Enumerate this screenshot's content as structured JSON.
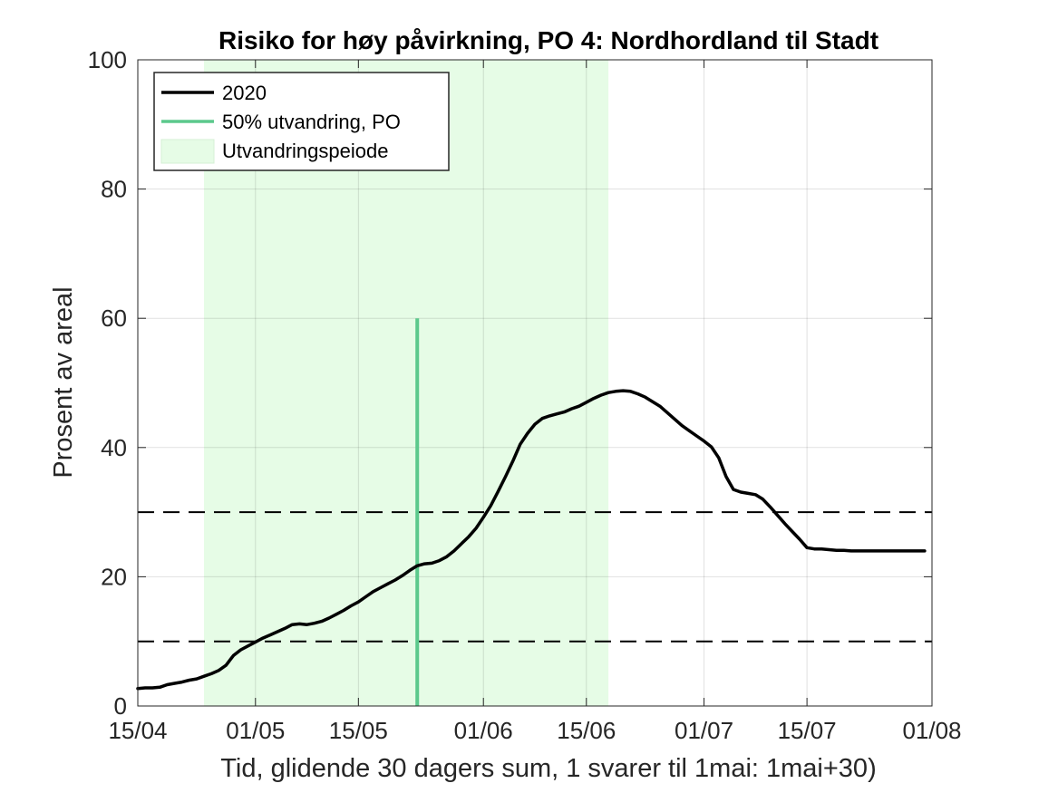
{
  "chart_data": {
    "type": "line",
    "title": "Risiko for høy påvirkning, PO 4: Nordhordland til Stadt",
    "xlabel": "Tid, glidende 30 dagers sum, 1 svarer til 1mai: 1mai+30)",
    "ylabel": "Prosent av areal",
    "x_ticks": [
      "15/04",
      "01/05",
      "15/05",
      "01/06",
      "15/06",
      "01/07",
      "15/07",
      "01/08"
    ],
    "x_tick_days": [
      0,
      16,
      30,
      47,
      61,
      77,
      91,
      108
    ],
    "xlim_days": [
      0,
      108
    ],
    "y_ticks": [
      "0",
      "20",
      "40",
      "60",
      "80",
      "100"
    ],
    "ylim": [
      0,
      100
    ],
    "grid": true,
    "legend_position": "top-left",
    "legend": [
      "2020",
      "50% utvandring, PO",
      "Utvandringspeiode"
    ],
    "series": [
      {
        "name": "2020",
        "color": "#000000",
        "x_days": [
          0,
          1,
          2,
          3,
          4,
          5,
          6,
          7,
          8,
          9,
          10,
          11,
          12,
          13,
          14,
          15,
          16,
          17,
          18,
          19,
          20,
          21,
          22,
          23,
          24,
          25,
          26,
          27,
          28,
          29,
          30,
          31,
          32,
          33,
          34,
          35,
          36,
          37,
          38,
          39,
          40,
          41,
          42,
          43,
          44,
          45,
          46,
          47,
          48,
          49,
          50,
          51,
          52,
          53,
          54,
          55,
          56,
          57,
          58,
          59,
          60,
          61,
          62,
          63,
          64,
          65,
          66,
          67,
          68,
          69,
          70,
          71,
          72,
          73,
          74,
          75,
          76,
          77,
          78,
          79,
          80,
          81,
          82,
          83,
          84,
          85,
          86,
          87,
          88,
          89,
          90,
          91,
          92,
          93,
          94,
          95,
          96,
          97,
          98,
          99,
          100,
          101,
          102,
          103,
          104,
          105,
          106,
          107
        ],
        "values": [
          2.7,
          2.8,
          2.8,
          2.9,
          3.3,
          3.5,
          3.7,
          4.0,
          4.2,
          4.6,
          5.0,
          5.5,
          6.3,
          7.8,
          8.7,
          9.3,
          9.9,
          10.5,
          11.0,
          11.5,
          12.0,
          12.6,
          12.7,
          12.6,
          12.8,
          13.1,
          13.6,
          14.2,
          14.8,
          15.5,
          16.1,
          16.9,
          17.7,
          18.3,
          18.9,
          19.5,
          20.2,
          21.0,
          21.7,
          22.0,
          22.1,
          22.5,
          23.1,
          24.0,
          25.1,
          26.2,
          27.5,
          29.2,
          31.0,
          33.2,
          35.5,
          37.9,
          40.5,
          42.2,
          43.6,
          44.5,
          44.9,
          45.2,
          45.5,
          46.0,
          46.4,
          47.0,
          47.6,
          48.1,
          48.5,
          48.7,
          48.8,
          48.7,
          48.3,
          47.8,
          47.1,
          46.4,
          45.4,
          44.4,
          43.4,
          42.6,
          41.8,
          41.0,
          40.1,
          38.4,
          35.5,
          33.5,
          33.1,
          32.9,
          32.7,
          32.0,
          30.8,
          29.5,
          28.2,
          27.0,
          25.8,
          24.5,
          24.3,
          24.3,
          24.2,
          24.1,
          24.1,
          24.0,
          24.0,
          24.0,
          24.0,
          24.0,
          24.0,
          24.0,
          24.0,
          24.0,
          24.0,
          24.0
        ]
      }
    ],
    "vertical_line": {
      "label": "50% utvandring, PO",
      "x_day": 38,
      "y_from": 0,
      "y_to": 60,
      "color": "#5cc98c"
    },
    "shaded_period": {
      "label": "Utvandringspeiode",
      "x_from_day": 9,
      "x_to_day": 64,
      "color": "#e6fce6"
    },
    "dashed_lines": [
      10,
      30
    ]
  }
}
